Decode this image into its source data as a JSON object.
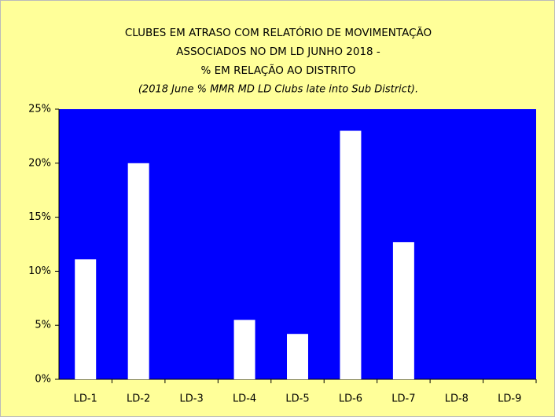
{
  "chart_data": {
    "type": "bar",
    "title": [
      "CLUBES EM ATRASO COM RELATÓRIO DE MOVIMENTAÇÃO",
      "ASSOCIADOS NO DM LD  JUNHO 2018 -",
      "%  EM RELAÇÃO  AO DISTRITO"
    ],
    "subtitle": "(2018 June % MMR MD LD Clubs late into Sub District).",
    "categories": [
      "LD-1",
      "LD-2",
      "LD-3",
      "LD-4",
      "LD-5",
      "LD-6",
      "LD-7",
      "LD-8",
      "LD-9"
    ],
    "values": [
      11.1,
      20,
      0,
      5.5,
      4.2,
      23,
      12.7,
      0,
      0
    ],
    "color": "#ffffff",
    "plot_background": "#0000ff",
    "background": "#ffff99",
    "ylim": [
      0,
      25
    ],
    "yticks": [
      {
        "value": 0,
        "label": "0%"
      },
      {
        "value": 5,
        "label": "5%"
      },
      {
        "value": 10,
        "label": "10%"
      },
      {
        "value": 15,
        "label": "15%"
      },
      {
        "value": 20,
        "label": "20%"
      },
      {
        "value": 25,
        "label": "25%"
      }
    ],
    "grid": false
  }
}
